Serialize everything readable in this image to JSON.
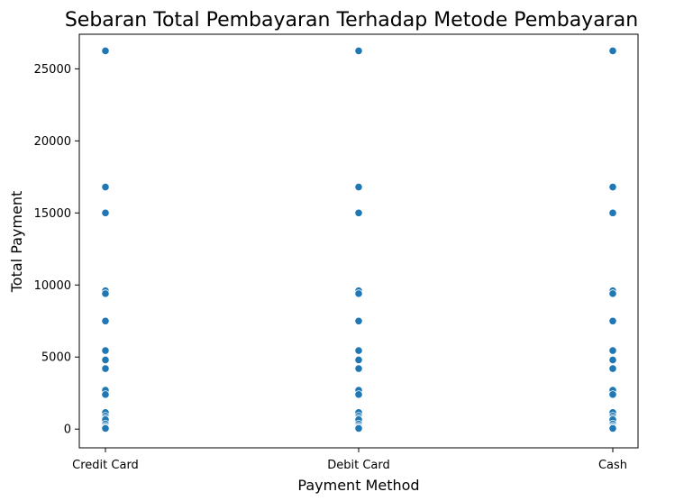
{
  "chart_data": {
    "type": "scatter",
    "title": "Sebaran Total Pembayaran Terhadap Metode Pembayaran",
    "xlabel": "Payment Method",
    "ylabel": "Total Payment",
    "categories": [
      "Credit Card",
      "Debit Card",
      "Cash"
    ],
    "y_ticks": [
      "0",
      "5000",
      "10000",
      "15000",
      "20000",
      "25000"
    ],
    "ylim": [
      -1300,
      27400
    ],
    "grid": false,
    "legend": "none",
    "marker_color": "#1f77b4",
    "series": [
      {
        "category": "Credit Card",
        "values": [
          26250,
          16800,
          15000,
          9600,
          9400,
          7500,
          5450,
          4800,
          4200,
          2700,
          2400,
          1150,
          900,
          750,
          650,
          350,
          200,
          100,
          50
        ]
      },
      {
        "category": "Debit Card",
        "values": [
          26250,
          16800,
          15000,
          9600,
          9400,
          7500,
          5450,
          4800,
          4200,
          2700,
          2400,
          1150,
          900,
          750,
          650,
          350,
          200,
          100,
          50
        ]
      },
      {
        "category": "Cash",
        "values": [
          26250,
          16800,
          15000,
          9600,
          9400,
          7500,
          5450,
          4800,
          4200,
          2700,
          2400,
          1150,
          900,
          750,
          650,
          350,
          200,
          100,
          50
        ]
      }
    ]
  }
}
